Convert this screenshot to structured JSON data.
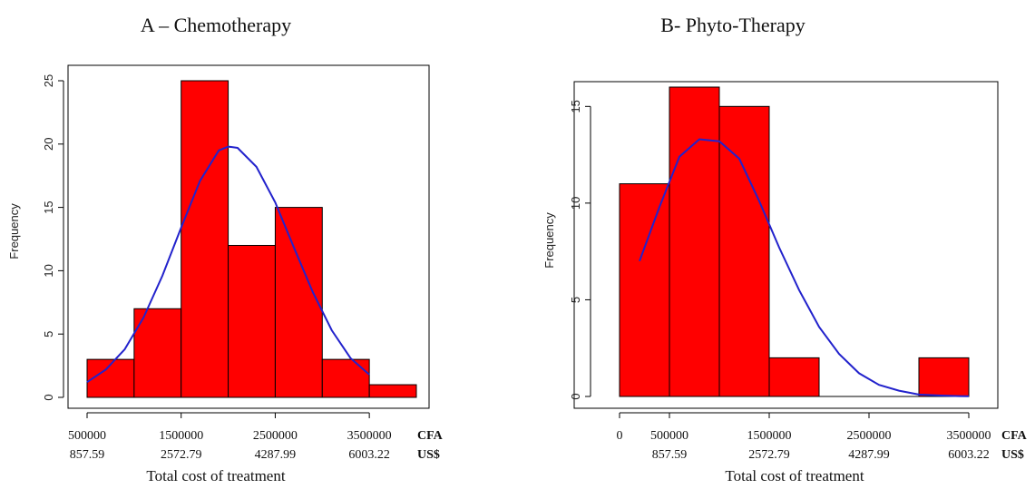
{
  "chart_data": [
    {
      "type": "bar",
      "title": "A – Chemotherapy",
      "xlabel": "Total cost of treatment",
      "ylabel": "Frequency",
      "bins": [
        {
          "x0": 500000,
          "x1": 1000000,
          "count": 3
        },
        {
          "x0": 1000000,
          "x1": 1500000,
          "count": 7
        },
        {
          "x0": 1500000,
          "x1": 2000000,
          "count": 25
        },
        {
          "x0": 2000000,
          "x1": 2500000,
          "count": 12
        },
        {
          "x0": 2500000,
          "x1": 3000000,
          "count": 15
        },
        {
          "x0": 3000000,
          "x1": 3500000,
          "count": 3
        },
        {
          "x0": 3500000,
          "x1": 4000000,
          "count": 1
        }
      ],
      "xlim": [
        500000,
        4000000
      ],
      "ylim": [
        0,
        25
      ],
      "y_ticks": [
        0,
        5,
        10,
        15,
        20,
        25
      ],
      "x_ticks_cfa": [
        500000,
        1500000,
        2500000,
        3500000
      ],
      "x_ticks_cfa_labels": [
        "500000",
        "1500000",
        "2500000",
        "3500000"
      ],
      "x_ticks_usd_labels": [
        "857.59",
        "2572.79",
        "4287.99",
        "6003.22"
      ],
      "currency_labels": [
        "CFA",
        "US$"
      ],
      "curve": {
        "x": [
          500000,
          700000,
          900000,
          1100000,
          1300000,
          1500000,
          1700000,
          1900000,
          2000000,
          2100000,
          2300000,
          2500000,
          2700000,
          2900000,
          3100000,
          3300000,
          3500000
        ],
        "y": [
          1.2,
          2.2,
          3.8,
          6.3,
          9.6,
          13.4,
          17.1,
          19.5,
          19.8,
          19.7,
          18.2,
          15.4,
          11.8,
          8.3,
          5.3,
          3.1,
          1.8
        ]
      },
      "bar_color": "#ff0000",
      "curve_color": "#2222cc"
    },
    {
      "type": "bar",
      "title": "B- Phyto-Therapy",
      "xlabel": "Total cost of treatment",
      "ylabel": "Frequency",
      "bins": [
        {
          "x0": 0,
          "x1": 500000,
          "count": 11
        },
        {
          "x0": 500000,
          "x1": 1000000,
          "count": 16
        },
        {
          "x0": 1000000,
          "x1": 1500000,
          "count": 15
        },
        {
          "x0": 1500000,
          "x1": 2000000,
          "count": 2
        },
        {
          "x0": 2000000,
          "x1": 2500000,
          "count": 0
        },
        {
          "x0": 2500000,
          "x1": 3000000,
          "count": 0
        },
        {
          "x0": 3000000,
          "x1": 3500000,
          "count": 2
        }
      ],
      "xlim": [
        0,
        3500000
      ],
      "ylim": [
        0,
        16
      ],
      "y_ticks": [
        0,
        5,
        10,
        15
      ],
      "x_ticks_cfa": [
        0,
        500000,
        1500000,
        2500000,
        3500000
      ],
      "x_ticks_cfa_labels": [
        "0",
        "500000",
        "1500000",
        "2500000",
        "3500000"
      ],
      "x_ticks_usd_labels": [
        "",
        "857.59",
        "2572.79",
        "4287.99",
        "6003.22"
      ],
      "currency_labels": [
        "CFA",
        "US$"
      ],
      "curve": {
        "x": [
          200000,
          400000,
          600000,
          800000,
          1000000,
          1200000,
          1400000,
          1600000,
          1800000,
          2000000,
          2200000,
          2400000,
          2600000,
          2800000,
          3000000,
          3200000,
          3400000,
          3500000
        ],
        "y": [
          7.0,
          9.8,
          12.4,
          13.3,
          13.2,
          12.3,
          10.1,
          7.7,
          5.5,
          3.6,
          2.2,
          1.2,
          0.6,
          0.3,
          0.1,
          0.05,
          0.02,
          0.01
        ]
      },
      "bar_color": "#ff0000",
      "curve_color": "#2222cc"
    }
  ]
}
